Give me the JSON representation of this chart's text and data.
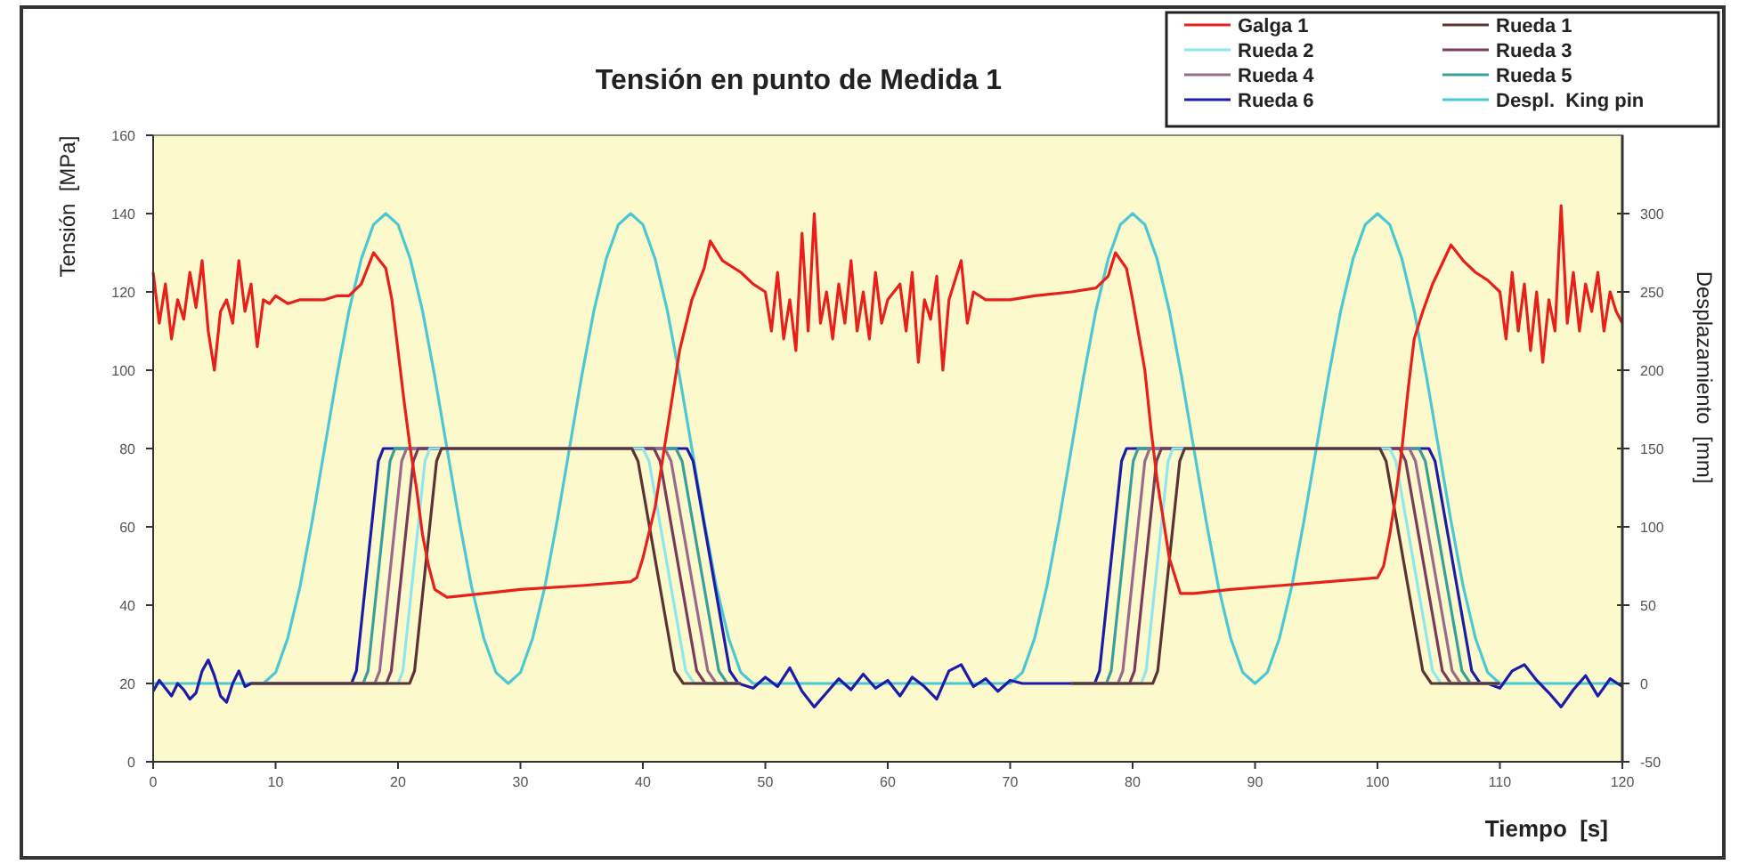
{
  "chart_data": {
    "type": "line",
    "title": "Tensión en punto de Medida 1",
    "xlabel": "Tiempo  [s]",
    "ylabel": "Tensión  [MPa]",
    "y2label": "Desplazamiento  [mm]",
    "xlim": [
      0,
      120
    ],
    "xticks": [
      0,
      10,
      20,
      30,
      40,
      50,
      60,
      70,
      80,
      90,
      100,
      110,
      120
    ],
    "ylim": [
      0,
      160
    ],
    "yticks": [
      0,
      20,
      40,
      60,
      80,
      100,
      120,
      140,
      160
    ],
    "y2lim": [
      -50,
      350
    ],
    "y2ticks": [
      -50,
      0,
      50,
      100,
      150,
      200,
      250,
      300
    ],
    "grid": false,
    "legend": "top right",
    "marker": "none",
    "line_style": "solid",
    "series": [
      {
        "name": "Galga 1",
        "color": "#e8201c",
        "x": [
          0,
          0.5,
          1,
          1.5,
          2,
          2.5,
          3,
          3.5,
          4,
          4.5,
          5,
          5.5,
          6,
          6.5,
          7,
          7.5,
          8,
          8.5,
          9,
          9.5,
          10,
          11,
          12,
          13,
          14,
          15,
          16,
          17,
          18,
          19,
          19.5,
          20,
          20.5,
          21,
          21.5,
          22,
          22.5,
          23,
          24,
          27,
          30,
          35,
          39,
          39.5,
          40,
          41,
          42,
          42.5,
          43,
          44,
          45,
          45.5,
          46.5,
          48,
          49,
          50,
          50.5,
          51,
          51.5,
          52,
          52.5,
          53,
          53.5,
          54,
          54.5,
          55,
          55.5,
          56,
          56.5,
          57,
          57.5,
          58,
          58.5,
          59,
          59.5,
          60,
          61,
          61.5,
          62,
          62.5,
          63,
          63.5,
          64,
          64.5,
          65,
          66,
          66.5,
          67,
          68,
          69,
          70,
          72,
          75,
          77,
          78,
          78.6,
          79.5,
          80,
          81,
          81.5,
          82,
          82.5,
          83,
          83.9,
          85,
          88,
          92,
          96,
          100,
          100.5,
          101,
          101.5,
          102,
          102.5,
          103,
          103.7,
          104.5,
          106,
          107,
          108,
          109,
          110,
          110.5,
          111,
          111.5,
          112,
          112.5,
          113,
          113.5,
          114,
          114.5,
          115,
          115.5,
          116,
          116.5,
          117,
          117.5,
          118,
          118.5,
          119,
          119.5,
          120
        ],
        "values": [
          125,
          112,
          122,
          108,
          118,
          113,
          125,
          116,
          128,
          110,
          100,
          115,
          118,
          112,
          128,
          115,
          122,
          106,
          118,
          117,
          119,
          117,
          118,
          118,
          118,
          119,
          119,
          122,
          130,
          126,
          118,
          105,
          92,
          80,
          70,
          58,
          50,
          44,
          42,
          43,
          44,
          45,
          46,
          47,
          52,
          65,
          85,
          95,
          105,
          118,
          126,
          133,
          128,
          125,
          122,
          120,
          110,
          125,
          108,
          118,
          105,
          135,
          110,
          140,
          112,
          120,
          108,
          122,
          112,
          128,
          110,
          120,
          108,
          125,
          112,
          118,
          122,
          110,
          125,
          102,
          118,
          113,
          124,
          100,
          118,
          128,
          112,
          120,
          118,
          118,
          118,
          119,
          120,
          121,
          124,
          130,
          126,
          118,
          100,
          85,
          72,
          62,
          52,
          43,
          43,
          44,
          45,
          46,
          47,
          50,
          58,
          68,
          80,
          95,
          108,
          115,
          122,
          132,
          128,
          125,
          123,
          120,
          108,
          125,
          110,
          122,
          105,
          120,
          102,
          118,
          110,
          142,
          112,
          125,
          110,
          122,
          115,
          125,
          110,
          120,
          115,
          112
        ]
      },
      {
        "name": "Rueda 1",
        "color": "#5a3434",
        "axis": "y2",
        "x": [
          8,
          20.95,
          21.35,
          23.15,
          23.55,
          39.1,
          39.6,
          42.6,
          43.3,
          48,
          62,
          75,
          81.65,
          82.05,
          83.85,
          84.25,
          100.2,
          100.7,
          103.7,
          104.4,
          110
        ],
        "values": [
          0,
          0,
          8,
          142,
          150,
          150,
          142,
          8,
          0,
          0,
          null,
          0,
          0,
          8,
          142,
          150,
          150,
          142,
          8,
          0,
          0
        ]
      },
      {
        "name": "Rueda 2",
        "color": "#8ee6ee",
        "axis": "y2",
        "x": [
          8,
          20.0,
          20.4,
          22.2,
          22.6,
          40.0,
          40.5,
          43.5,
          44.2,
          48,
          62,
          75,
          80.7,
          81.1,
          82.9,
          83.3,
          101.0,
          101.5,
          104.5,
          105.2,
          110
        ],
        "values": [
          0,
          0,
          8,
          142,
          150,
          150,
          142,
          8,
          0,
          0,
          null,
          0,
          0,
          8,
          142,
          150,
          150,
          142,
          8,
          0,
          0
        ]
      },
      {
        "name": "Rueda 3",
        "color": "#7a3a5c",
        "axis": "y2",
        "x": [
          8,
          19.05,
          19.45,
          21.25,
          21.65,
          40.9,
          41.4,
          44.4,
          45.1,
          48,
          62,
          75,
          79.75,
          80.15,
          81.95,
          82.35,
          101.8,
          102.3,
          105.3,
          106.0,
          110
        ],
        "values": [
          0,
          0,
          8,
          142,
          150,
          150,
          142,
          8,
          0,
          0,
          null,
          0,
          0,
          8,
          142,
          150,
          150,
          142,
          8,
          0,
          0
        ]
      },
      {
        "name": "Rueda 4",
        "color": "#9a6a8c",
        "axis": "y2",
        "x": [
          8,
          18.1,
          18.5,
          20.3,
          20.7,
          41.8,
          42.3,
          45.3,
          46.0,
          48,
          62,
          75,
          78.8,
          79.2,
          81.0,
          81.4,
          102.6,
          103.1,
          106.1,
          106.8,
          110
        ],
        "values": [
          0,
          0,
          8,
          142,
          150,
          150,
          142,
          8,
          0,
          0,
          null,
          0,
          0,
          8,
          142,
          150,
          150,
          142,
          8,
          0,
          0
        ]
      },
      {
        "name": "Rueda 5",
        "color": "#3a9e9a",
        "axis": "y2",
        "x": [
          8,
          17.15,
          17.55,
          19.35,
          19.75,
          42.7,
          43.2,
          46.2,
          46.9,
          48,
          62,
          75,
          77.85,
          78.25,
          80.05,
          80.45,
          103.4,
          103.9,
          106.9,
          107.6,
          110
        ],
        "values": [
          0,
          0,
          8,
          142,
          150,
          150,
          142,
          8,
          0,
          0,
          null,
          0,
          0,
          8,
          142,
          150,
          150,
          142,
          8,
          0,
          0
        ]
      },
      {
        "name": "Rueda 6",
        "color": "#1c1ca8",
        "axis": "y2",
        "x": [
          0,
          0.5,
          1,
          1.5,
          2,
          2.5,
          3,
          3.5,
          4,
          4.5,
          5,
          5.5,
          6,
          6.5,
          7,
          7.5,
          8,
          16.2,
          16.6,
          18.4,
          18.8,
          43.6,
          44.1,
          47.1,
          47.8,
          49,
          50,
          51,
          52,
          53,
          54,
          55,
          56,
          57,
          58,
          59,
          60,
          61,
          62,
          63,
          64,
          65,
          66,
          67,
          68,
          69,
          70,
          71,
          72,
          75,
          76.9,
          77.3,
          79.1,
          79.5,
          104.2,
          104.7,
          107.7,
          108.4,
          109,
          110,
          111,
          112,
          113,
          114,
          115,
          116,
          117,
          118,
          119,
          120
        ],
        "values": [
          -5,
          2,
          -3,
          -8,
          0,
          -4,
          -10,
          -6,
          8,
          15,
          5,
          -8,
          -12,
          0,
          8,
          -2,
          0,
          0,
          8,
          142,
          150,
          150,
          142,
          8,
          0,
          -3,
          4,
          -2,
          10,
          -5,
          -15,
          -6,
          3,
          -4,
          6,
          -3,
          2,
          -8,
          4,
          -2,
          -10,
          8,
          12,
          -2,
          3,
          -5,
          2,
          0,
          0,
          0,
          0,
          8,
          142,
          150,
          150,
          142,
          8,
          0,
          0,
          -3,
          8,
          12,
          2,
          -6,
          -15,
          -4,
          5,
          -8,
          3,
          -2
        ]
      },
      {
        "name": "Despl.  King pin",
        "color": "#4cc8d4",
        "axis": "y2",
        "x": [
          0,
          9,
          10,
          11,
          12,
          13,
          14,
          15,
          16,
          17,
          18,
          19,
          20,
          21,
          22,
          23,
          24,
          25,
          26,
          27,
          28,
          29,
          30,
          31,
          32,
          33,
          34,
          35,
          36,
          37,
          38,
          39,
          40,
          41,
          42,
          43,
          44,
          45,
          46,
          47,
          48,
          49,
          70,
          71,
          72,
          73,
          74,
          75,
          76,
          77,
          78,
          79,
          80,
          81,
          82,
          83,
          84,
          85,
          86,
          87,
          88,
          89,
          90,
          91,
          92,
          93,
          94,
          95,
          96,
          97,
          98,
          99,
          100,
          101,
          102,
          103,
          104,
          105,
          106,
          107,
          108,
          109,
          110,
          120
        ],
        "values": [
          0,
          0,
          7,
          29,
          62,
          104,
          150,
          196,
          238,
          271,
          293,
          300,
          293,
          271,
          238,
          196,
          150,
          104,
          62,
          29,
          7,
          0,
          7,
          29,
          62,
          104,
          150,
          196,
          238,
          271,
          293,
          300,
          293,
          271,
          238,
          196,
          150,
          104,
          62,
          29,
          7,
          0,
          0,
          7,
          29,
          62,
          104,
          150,
          196,
          238,
          271,
          293,
          300,
          293,
          271,
          238,
          196,
          150,
          104,
          62,
          29,
          7,
          0,
          7,
          29,
          62,
          104,
          150,
          196,
          238,
          271,
          293,
          300,
          293,
          271,
          238,
          196,
          150,
          104,
          62,
          29,
          7,
          0,
          0
        ]
      }
    ]
  }
}
